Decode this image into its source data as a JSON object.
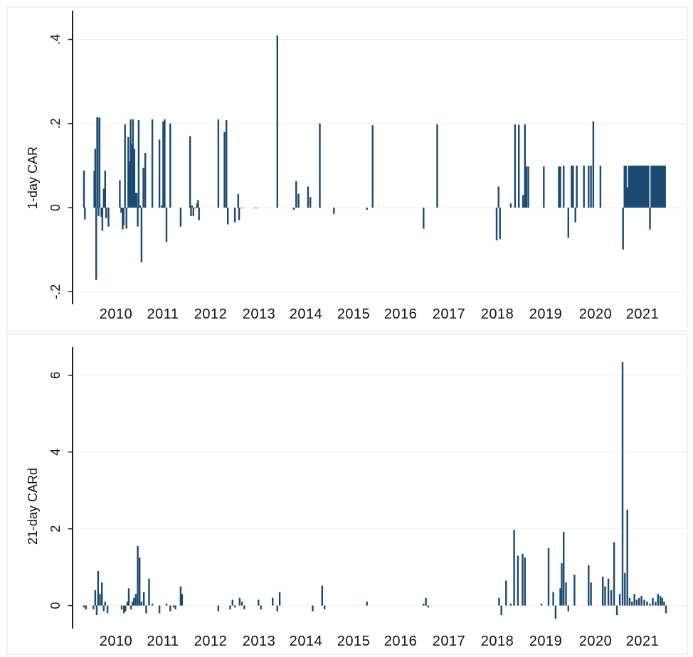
{
  "colors": {
    "bar": "#1b4a72",
    "axis": "#222222",
    "grid": "#eef0f3"
  },
  "chart_data": [
    {
      "type": "bar",
      "ylabel": "1-day CAR",
      "ylim": [
        -0.23,
        0.46
      ],
      "yticks": [
        {
          "v": 0.4,
          "label": ".4"
        },
        {
          "v": 0.2,
          "label": ".2"
        },
        {
          "v": 0,
          "label": "0"
        },
        {
          "v": -0.2,
          "label": "-.2"
        }
      ],
      "xlim": [
        2009.5,
        2021.9
      ],
      "xticks": [
        "2010",
        "2011",
        "2012",
        "2013",
        "2014",
        "2015",
        "2016",
        "2017",
        "2018",
        "2019",
        "2020",
        "2021"
      ],
      "grid": true,
      "legend": "none",
      "series": [
        {
          "x": [
            2009.5,
            2009.52,
            2009.72,
            2009.74,
            2009.76,
            2009.78,
            2009.79,
            2009.81,
            2009.83,
            2009.87,
            2009.89,
            2009.92,
            2009.95,
            2009.97,
            2009.99,
            2010.02,
            2010.26,
            2010.29,
            2010.32,
            2010.34,
            2010.37,
            2010.4,
            2010.44,
            2010.46,
            2010.49,
            2010.51,
            2010.54,
            2010.57,
            2010.59,
            2010.62,
            2010.64,
            2010.66,
            2010.69,
            2010.72,
            2010.76,
            2010.8,
            2010.95,
            2011.1,
            2011.15,
            2011.18,
            2011.21,
            2011.25,
            2011.33,
            2011.55,
            2011.75,
            2011.77,
            2011.79,
            2011.82,
            2011.85,
            2011.88,
            2011.9,
            2011.92,
            2011.94,
            2012.35,
            2012.48,
            2012.52,
            2012.55,
            2012.7,
            2012.77,
            2012.79,
            2012.85,
            2013.12,
            2013.18,
            2013.6,
            2013.95,
            2014.0,
            2014.05,
            2014.25,
            2014.3,
            2014.5,
            2014.8,
            2015.5,
            2015.62,
            2016.7,
            2016.99,
            2018.25,
            2018.29,
            2018.32,
            2018.55,
            2018.64,
            2018.72,
            2018.81,
            2018.85,
            2018.88,
            2018.92,
            2019.25,
            2019.57,
            2019.6,
            2019.67,
            2019.77,
            2019.84,
            2019.87,
            2019.92,
            2019.95,
            2020.1,
            2020.2,
            2020.25,
            2020.3,
            2020.45,
            2020.93,
            2020.96,
            2020.99,
            2021.02,
            2021.05,
            2021.08,
            2021.11,
            2021.14,
            2021.17,
            2021.2,
            2021.23,
            2021.26,
            2021.29,
            2021.32,
            2021.35,
            2021.38,
            2021.41,
            2021.44,
            2021.47,
            2021.5,
            2021.53,
            2021.56,
            2021.59,
            2021.62,
            2021.65,
            2021.68,
            2021.71,
            2021.74,
            2021.77,
            2021.8,
            2021.82
          ],
          "values": [
            0.088,
            -0.028,
            0.088,
            0.14,
            -0.172,
            0.215,
            0.215,
            -0.02,
            0.214,
            -0.022,
            -0.055,
            0.045,
            0.088,
            -0.025,
            0.0,
            -0.045,
            0.065,
            -0.012,
            -0.052,
            -0.042,
            0.198,
            -0.05,
            0.168,
            0.11,
            0.21,
            0.15,
            0.21,
            0.14,
            0.035,
            0.035,
            -0.045,
            0.208,
            0.005,
            -0.13,
            0.095,
            0.13,
            0.21,
            0.162,
            0.005,
            0.205,
            0.21,
            -0.082,
            0.2,
            -0.045,
            0.17,
            -0.02,
            0.005,
            -0.02,
            0.0,
            0.0,
            0.01,
            0.018,
            -0.03,
            0.21,
            0.18,
            0.208,
            -0.04,
            -0.035,
            0.032,
            -0.03,
            0.0,
            0.0,
            0.0,
            0.41,
            -0.005,
            0.063,
            0.033,
            0.05,
            0.025,
            0.2,
            -0.015,
            -0.005,
            0.196,
            -0.05,
            0.198,
            -0.078,
            0.05,
            -0.075,
            0.01,
            0.198,
            0.197,
            0.03,
            0.198,
            0.098,
            0.098,
            0.098,
            0.098,
            0.098,
            0.1,
            -0.072,
            0.1,
            0.1,
            -0.035,
            0.1,
            0.1,
            0.1,
            0.1,
            0.205,
            0.1,
            -0.1,
            0.1,
            0.1,
            0.048,
            0.1,
            0.1,
            0.1,
            0.1,
            0.1,
            0.1,
            0.1,
            0.1,
            0.1,
            0.1,
            0.1,
            0.1,
            0.1,
            0.1,
            0.1,
            -0.052,
            0.1,
            0.1,
            0.1,
            0.1,
            0.1,
            0.1,
            0.1,
            0.1,
            0.1,
            0.1,
            0.1
          ]
        }
      ]
    },
    {
      "type": "bar",
      "ylabel": "21-day CARd",
      "ylim": [
        -0.6,
        6.7
      ],
      "yticks": [
        {
          "v": 6,
          "label": "6"
        },
        {
          "v": 4,
          "label": "4"
        },
        {
          "v": 2,
          "label": "2"
        },
        {
          "v": 0,
          "label": "0"
        }
      ],
      "xlim": [
        2009.5,
        2021.9
      ],
      "xticks": [
        "2010",
        "2011",
        "2012",
        "2013",
        "2014",
        "2015",
        "2016",
        "2017",
        "2018",
        "2019",
        "2020",
        "2021"
      ],
      "grid": true,
      "legend": "none",
      "series": [
        {
          "x": [
            2009.5,
            2009.54,
            2009.7,
            2009.74,
            2009.77,
            2009.8,
            2009.84,
            2009.88,
            2009.92,
            2009.95,
            2010.0,
            2010.3,
            2010.35,
            2010.38,
            2010.42,
            2010.45,
            2010.5,
            2010.53,
            2010.56,
            2010.6,
            2010.64,
            2010.68,
            2010.72,
            2010.77,
            2010.82,
            2010.88,
            2010.95,
            2011.1,
            2011.25,
            2011.33,
            2011.4,
            2011.44,
            2011.55,
            2011.58,
            2012.35,
            2012.6,
            2012.65,
            2012.7,
            2012.8,
            2012.85,
            2012.9,
            2013.2,
            2013.25,
            2013.5,
            2013.6,
            2013.65,
            2014.35,
            2014.55,
            2014.6,
            2015.5,
            2016.7,
            2016.75,
            2016.8,
            2018.3,
            2018.35,
            2018.45,
            2018.55,
            2018.62,
            2018.7,
            2018.8,
            2018.85,
            2019.2,
            2019.35,
            2019.45,
            2019.5,
            2019.6,
            2019.63,
            2019.67,
            2019.72,
            2019.77,
            2019.9,
            2020.2,
            2020.25,
            2020.5,
            2020.55,
            2020.62,
            2020.68,
            2020.74,
            2020.8,
            2020.86,
            2020.92,
            2020.97,
            2021.02,
            2021.07,
            2021.12,
            2021.17,
            2021.22,
            2021.27,
            2021.32,
            2021.38,
            2021.44,
            2021.5,
            2021.56,
            2021.62,
            2021.67,
            2021.72,
            2021.76,
            2021.8,
            2021.84
          ],
          "values": [
            -0.05,
            -0.1,
            -0.1,
            0.4,
            -0.25,
            0.9,
            0.3,
            0.6,
            -0.15,
            0.1,
            -0.2,
            -0.1,
            -0.2,
            -0.15,
            0.1,
            0.45,
            -0.1,
            0.1,
            0.2,
            0.3,
            1.55,
            1.25,
            0.1,
            0.35,
            -0.2,
            0.7,
            0.05,
            -0.2,
            0.05,
            -0.15,
            -0.05,
            -0.1,
            0.5,
            0.3,
            -0.15,
            -0.1,
            0.15,
            -0.05,
            0.2,
            0.1,
            -0.1,
            0.15,
            -0.1,
            0.2,
            -0.15,
            0.35,
            -0.15,
            0.52,
            -0.1,
            0.1,
            0.05,
            0.2,
            -0.05,
            0.2,
            -0.25,
            0.65,
            0.05,
            1.97,
            1.3,
            1.35,
            1.25,
            0.05,
            1.5,
            0.35,
            -0.35,
            0.45,
            1.1,
            1.92,
            0.6,
            -0.15,
            0.8,
            1.05,
            0.6,
            0.75,
            0.5,
            0.7,
            0.4,
            1.65,
            -0.25,
            0.3,
            6.35,
            0.85,
            2.5,
            0.2,
            0.1,
            0.3,
            0.15,
            0.2,
            0.25,
            0.15,
            0.1,
            0.05,
            0.2,
            0.1,
            0.3,
            0.25,
            0.2,
            0.1,
            -0.2
          ]
        }
      ]
    }
  ]
}
